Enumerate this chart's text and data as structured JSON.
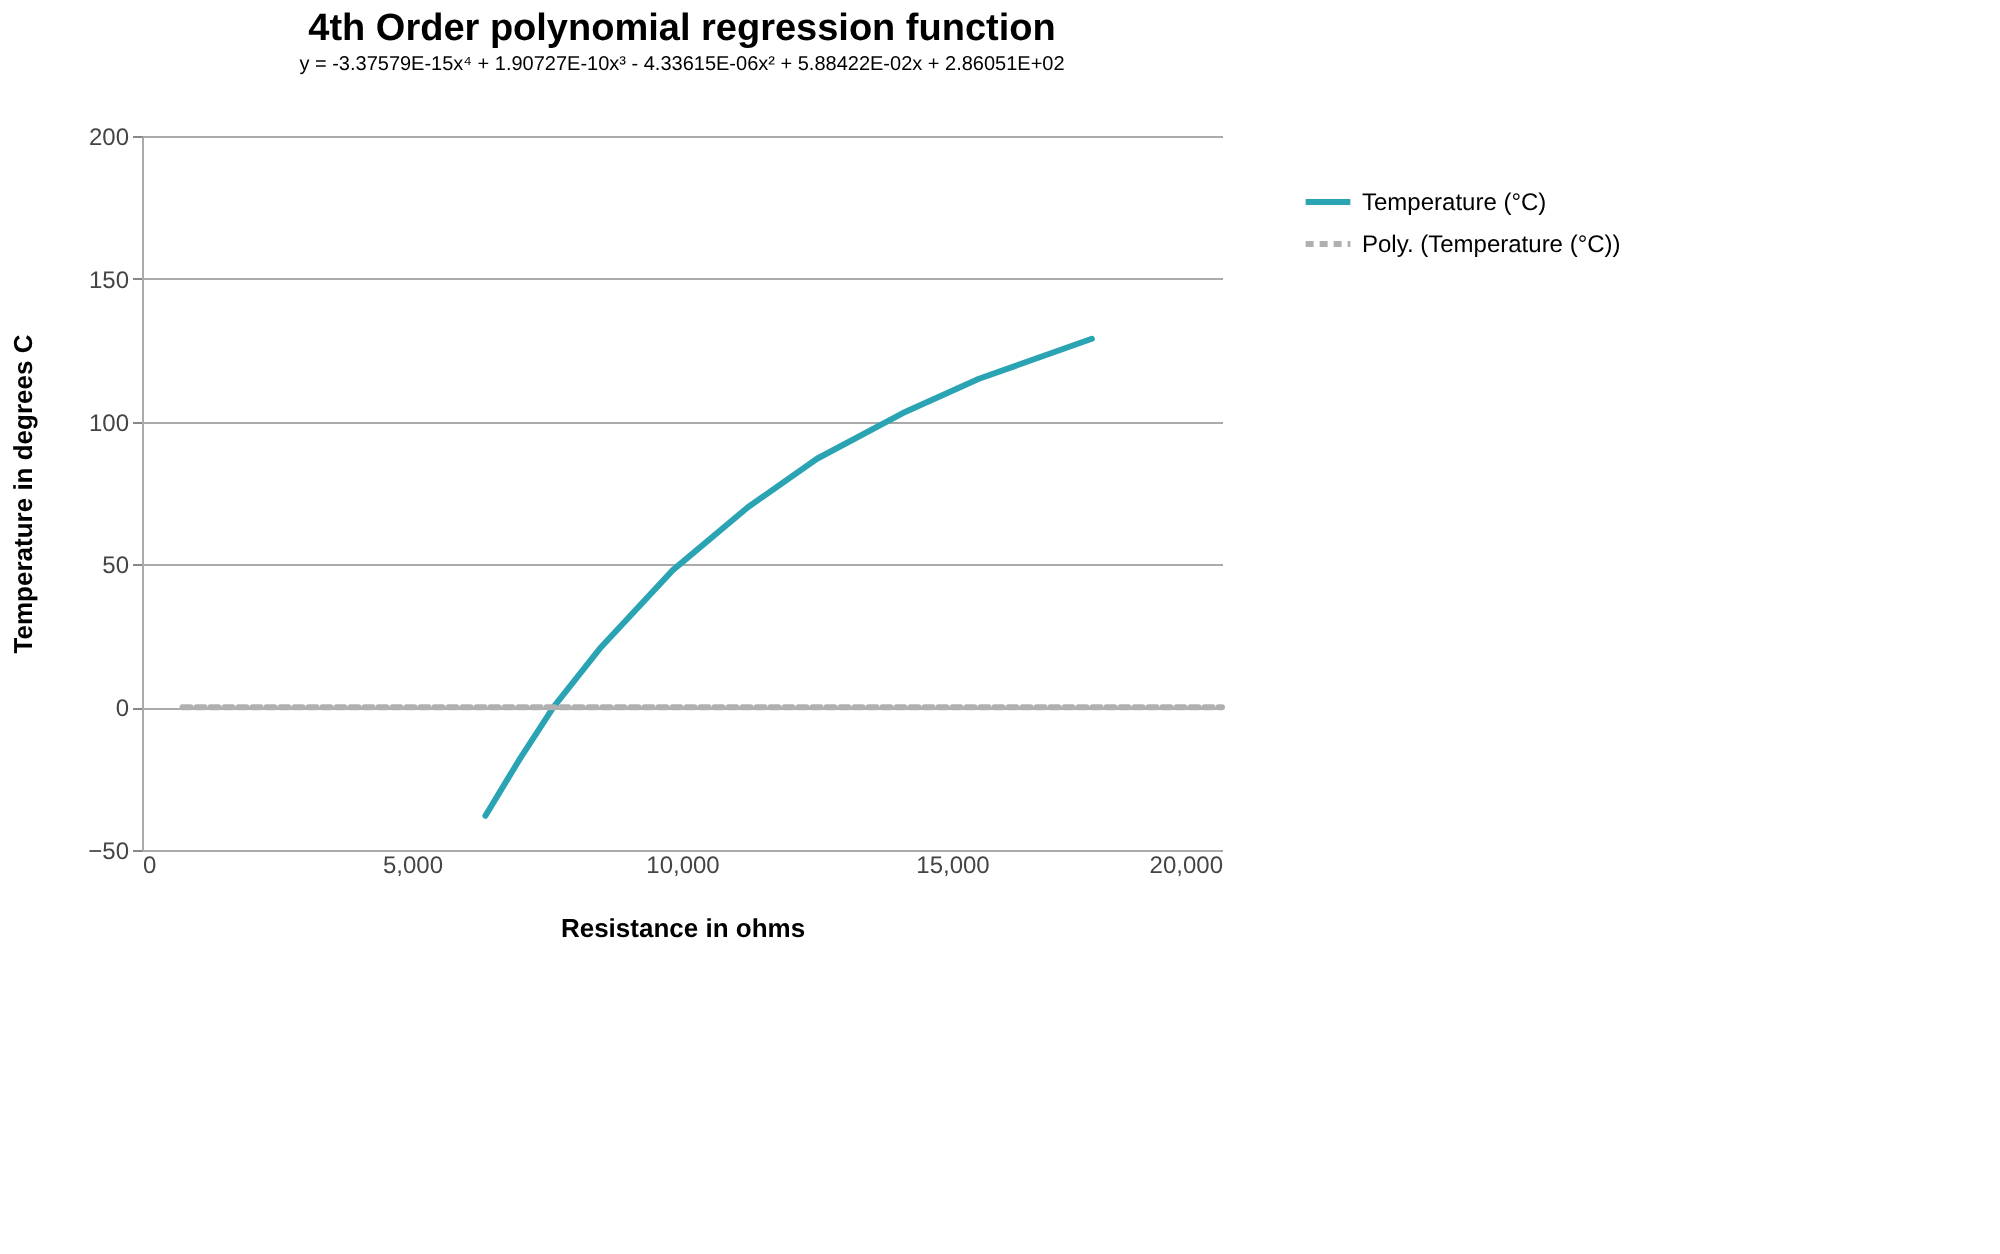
{
  "chart_data": {
    "type": "line",
    "title": "4th Order polynomial regression function",
    "subtitle": "y = -3.37579E-15x⁴ + 1.90727E-10x³ - 4.33615E-06x² + 5.88422E-02x + 2.86051E+02",
    "xlabel": "Resistance in ohms",
    "ylabel": "Temperature in degrees C",
    "xlim": [
      0,
      20000
    ],
    "xticks": [
      0,
      {
        "value": 5000,
        "label": "5,000"
      },
      {
        "value": 10000,
        "label": "10,000"
      },
      {
        "value": 15000,
        "label": "15,000"
      },
      {
        "value": 20000,
        "label": "20,000"
      }
    ],
    "ylim": [
      -50,
      200
    ],
    "yticks": [
      -50,
      0,
      50,
      100,
      150,
      200
    ],
    "grid": "y",
    "legend": "right",
    "series": [
      {
        "name": "Temperature (°C)",
        "color": "#2aa3b3",
        "line_style": "solid",
        "x": [
          6360,
          7000,
          7620,
          8500,
          9830,
          11220,
          12500,
          14090,
          15500,
          17590
        ],
        "values": [
          -38,
          -18,
          0,
          21,
          48,
          70,
          87,
          103,
          115,
          129
        ]
      },
      {
        "name": "Poly. (Temperature (°C))",
        "color": "#b0b0b0",
        "line_style": "dashed",
        "x": [
          750,
          20000
        ],
        "values": [
          0,
          0
        ]
      }
    ]
  }
}
